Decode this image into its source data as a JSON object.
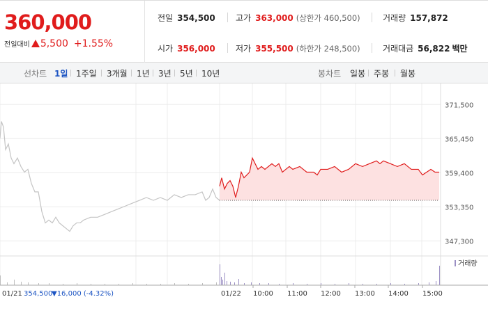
{
  "quote": {
    "price": "360,000",
    "change_label": "전일대비",
    "change": "5,500",
    "change_rate": "+1.55%"
  },
  "stats": {
    "prev_close_label": "전일",
    "prev_close": "354,500",
    "high_label": "고가",
    "high": "363,000",
    "upper_limit": "(상한가 460,500)",
    "volume_label": "거래량",
    "volume": "157,872",
    "open_label": "시가",
    "open": "356,000",
    "low_label": "저가",
    "low": "355,500",
    "lower_limit": "(하한가 248,500)",
    "amount_label": "거래대금",
    "amount": "56,822",
    "amount_unit": "백만"
  },
  "toolbar": {
    "line_label": "선차트",
    "periods": [
      "1일",
      "1주일",
      "3개월",
      "1년",
      "3년",
      "5년",
      "10년"
    ],
    "candle_label": "봉차트",
    "candles": [
      "일봉",
      "주봉",
      "월봉"
    ]
  },
  "colors": {
    "up": "#e01c1c",
    "down": "#1d55c3",
    "prev_line": "#c4c4c4",
    "fill": "#fde1e1",
    "volume": "#9b8fc4"
  },
  "chart_data": {
    "type": "line",
    "ylim": [
      345000,
      374000
    ],
    "yticks": [
      371500,
      365450,
      359400,
      353350,
      347300
    ],
    "ytick_labels": [
      "371,500",
      "365,450",
      "359,400",
      "353,350",
      "347,300"
    ],
    "reference_price": 354500,
    "prev_day": {
      "date_label": "01/21",
      "close": "354,500",
      "change": "▼16,000 (-4.32%)",
      "x": [
        0,
        2,
        5,
        8,
        12,
        16,
        20,
        25,
        30,
        35,
        40,
        45,
        50,
        55,
        60,
        65,
        70,
        75,
        80,
        85,
        90,
        95,
        100,
        105,
        110,
        115,
        120,
        130,
        140,
        150,
        160,
        170,
        180,
        190,
        200,
        210,
        220,
        230,
        240,
        250,
        260,
        270,
        280,
        290,
        295,
        300,
        305,
        310,
        315
      ],
      "y": [
        365500,
        368500,
        367500,
        363500,
        364500,
        362000,
        361000,
        362000,
        360500,
        359500,
        360000,
        357500,
        356000,
        356000,
        352500,
        350500,
        351000,
        350500,
        351500,
        350500,
        350000,
        349500,
        349000,
        350000,
        350500,
        350500,
        351000,
        351500,
        351500,
        352000,
        352500,
        353000,
        353500,
        354000,
        354500,
        355000,
        354500,
        355000,
        354500,
        355500,
        355000,
        355500,
        355500,
        356000,
        354500,
        355000,
        356500,
        355000,
        354500
      ]
    },
    "today": {
      "date_label": "01/22",
      "x": [
        315,
        318,
        322,
        326,
        330,
        334,
        338,
        342,
        346,
        350,
        354,
        358,
        362,
        366,
        370,
        375,
        380,
        385,
        390,
        395,
        400,
        405,
        410,
        415,
        420,
        430,
        440,
        450,
        455,
        460,
        470,
        480,
        490,
        500,
        510,
        520,
        530,
        540,
        545,
        550,
        560,
        570,
        580,
        590,
        600,
        606,
        612,
        618,
        624,
        630
      ],
      "y": [
        357000,
        358500,
        356500,
        357500,
        358000,
        357000,
        355000,
        357000,
        359500,
        358500,
        359000,
        359500,
        362000,
        361000,
        360000,
        360500,
        360000,
        360500,
        361000,
        360500,
        361000,
        359500,
        360000,
        360500,
        360000,
        360500,
        359500,
        359500,
        359000,
        360000,
        360000,
        360500,
        359500,
        360000,
        361000,
        360500,
        361000,
        361500,
        361000,
        361500,
        361000,
        360500,
        361000,
        360000,
        360000,
        359000,
        359500,
        360000,
        359500,
        359500
      ]
    },
    "volume_label": "거래량",
    "volume_x": [
      315,
      317,
      319,
      322,
      325,
      330,
      336,
      342,
      350,
      360,
      372,
      385,
      400,
      420,
      440,
      460,
      480,
      500,
      520,
      540,
      560,
      580,
      600,
      615,
      625,
      630
    ],
    "volume_v": [
      30,
      12,
      8,
      18,
      6,
      5,
      4,
      9,
      3,
      4,
      3,
      3,
      2,
      3,
      2,
      3,
      2,
      3,
      2,
      2,
      3,
      2,
      3,
      4,
      6,
      28
    ],
    "volume_prev_x": [
      0,
      10,
      20,
      30,
      40,
      55,
      70,
      90,
      110,
      130,
      150,
      170,
      190,
      210,
      230,
      250,
      270,
      290,
      310
    ],
    "volume_prev_v": [
      14,
      4,
      8,
      5,
      4,
      3,
      3,
      2,
      3,
      2,
      2,
      2,
      3,
      2,
      2,
      3,
      2,
      3,
      4
    ],
    "xticks_today": [
      "10:00",
      "11:00",
      "12:00",
      "13:00",
      "14:00",
      "15:00"
    ]
  }
}
